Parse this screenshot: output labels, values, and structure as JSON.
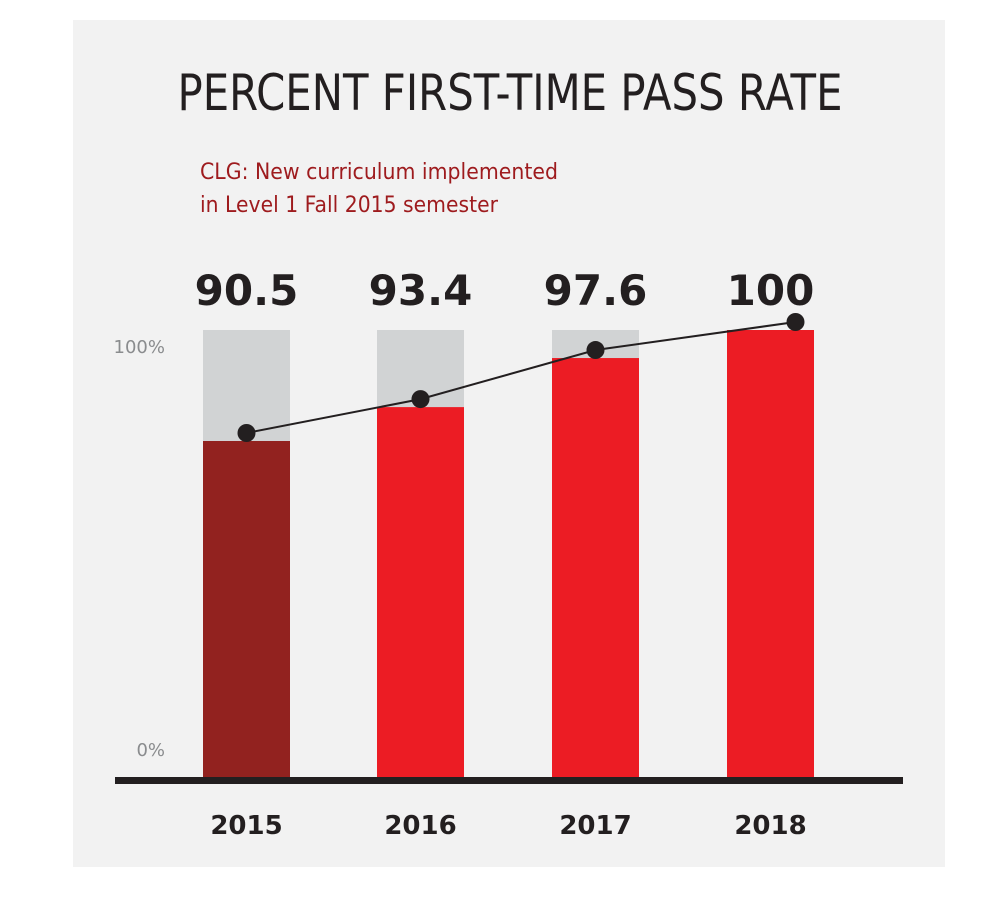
{
  "chart_data": {
    "type": "bar",
    "title": "PERCENT FIRST-TIME PASS RATE",
    "annotation": [
      "CLG: New curriculum implemented",
      "in Level 1 Fall 2015 semester"
    ],
    "categories": [
      "2015",
      "2016",
      "2017",
      "2018"
    ],
    "values": [
      90.5,
      93.4,
      97.6,
      100
    ],
    "value_labels": [
      "90.5",
      "93.4",
      "97.6",
      "100"
    ],
    "ylim": [
      0,
      100
    ],
    "yticks": [
      {
        "value": 0,
        "label": "0%"
      },
      {
        "value": 100,
        "label": "100%"
      }
    ],
    "xlabel": "",
    "ylabel": "",
    "grid": false,
    "overlay": "line-with-markers",
    "colors": {
      "panel": "#f2f2f2",
      "bar_first": "#92221f",
      "bar": "#ec1c24",
      "bar_track": "#d1d3d4",
      "text": "#231f20",
      "annotation": "#9e1b1e",
      "tick": "#8a8c8e",
      "line": "#231f20"
    }
  }
}
